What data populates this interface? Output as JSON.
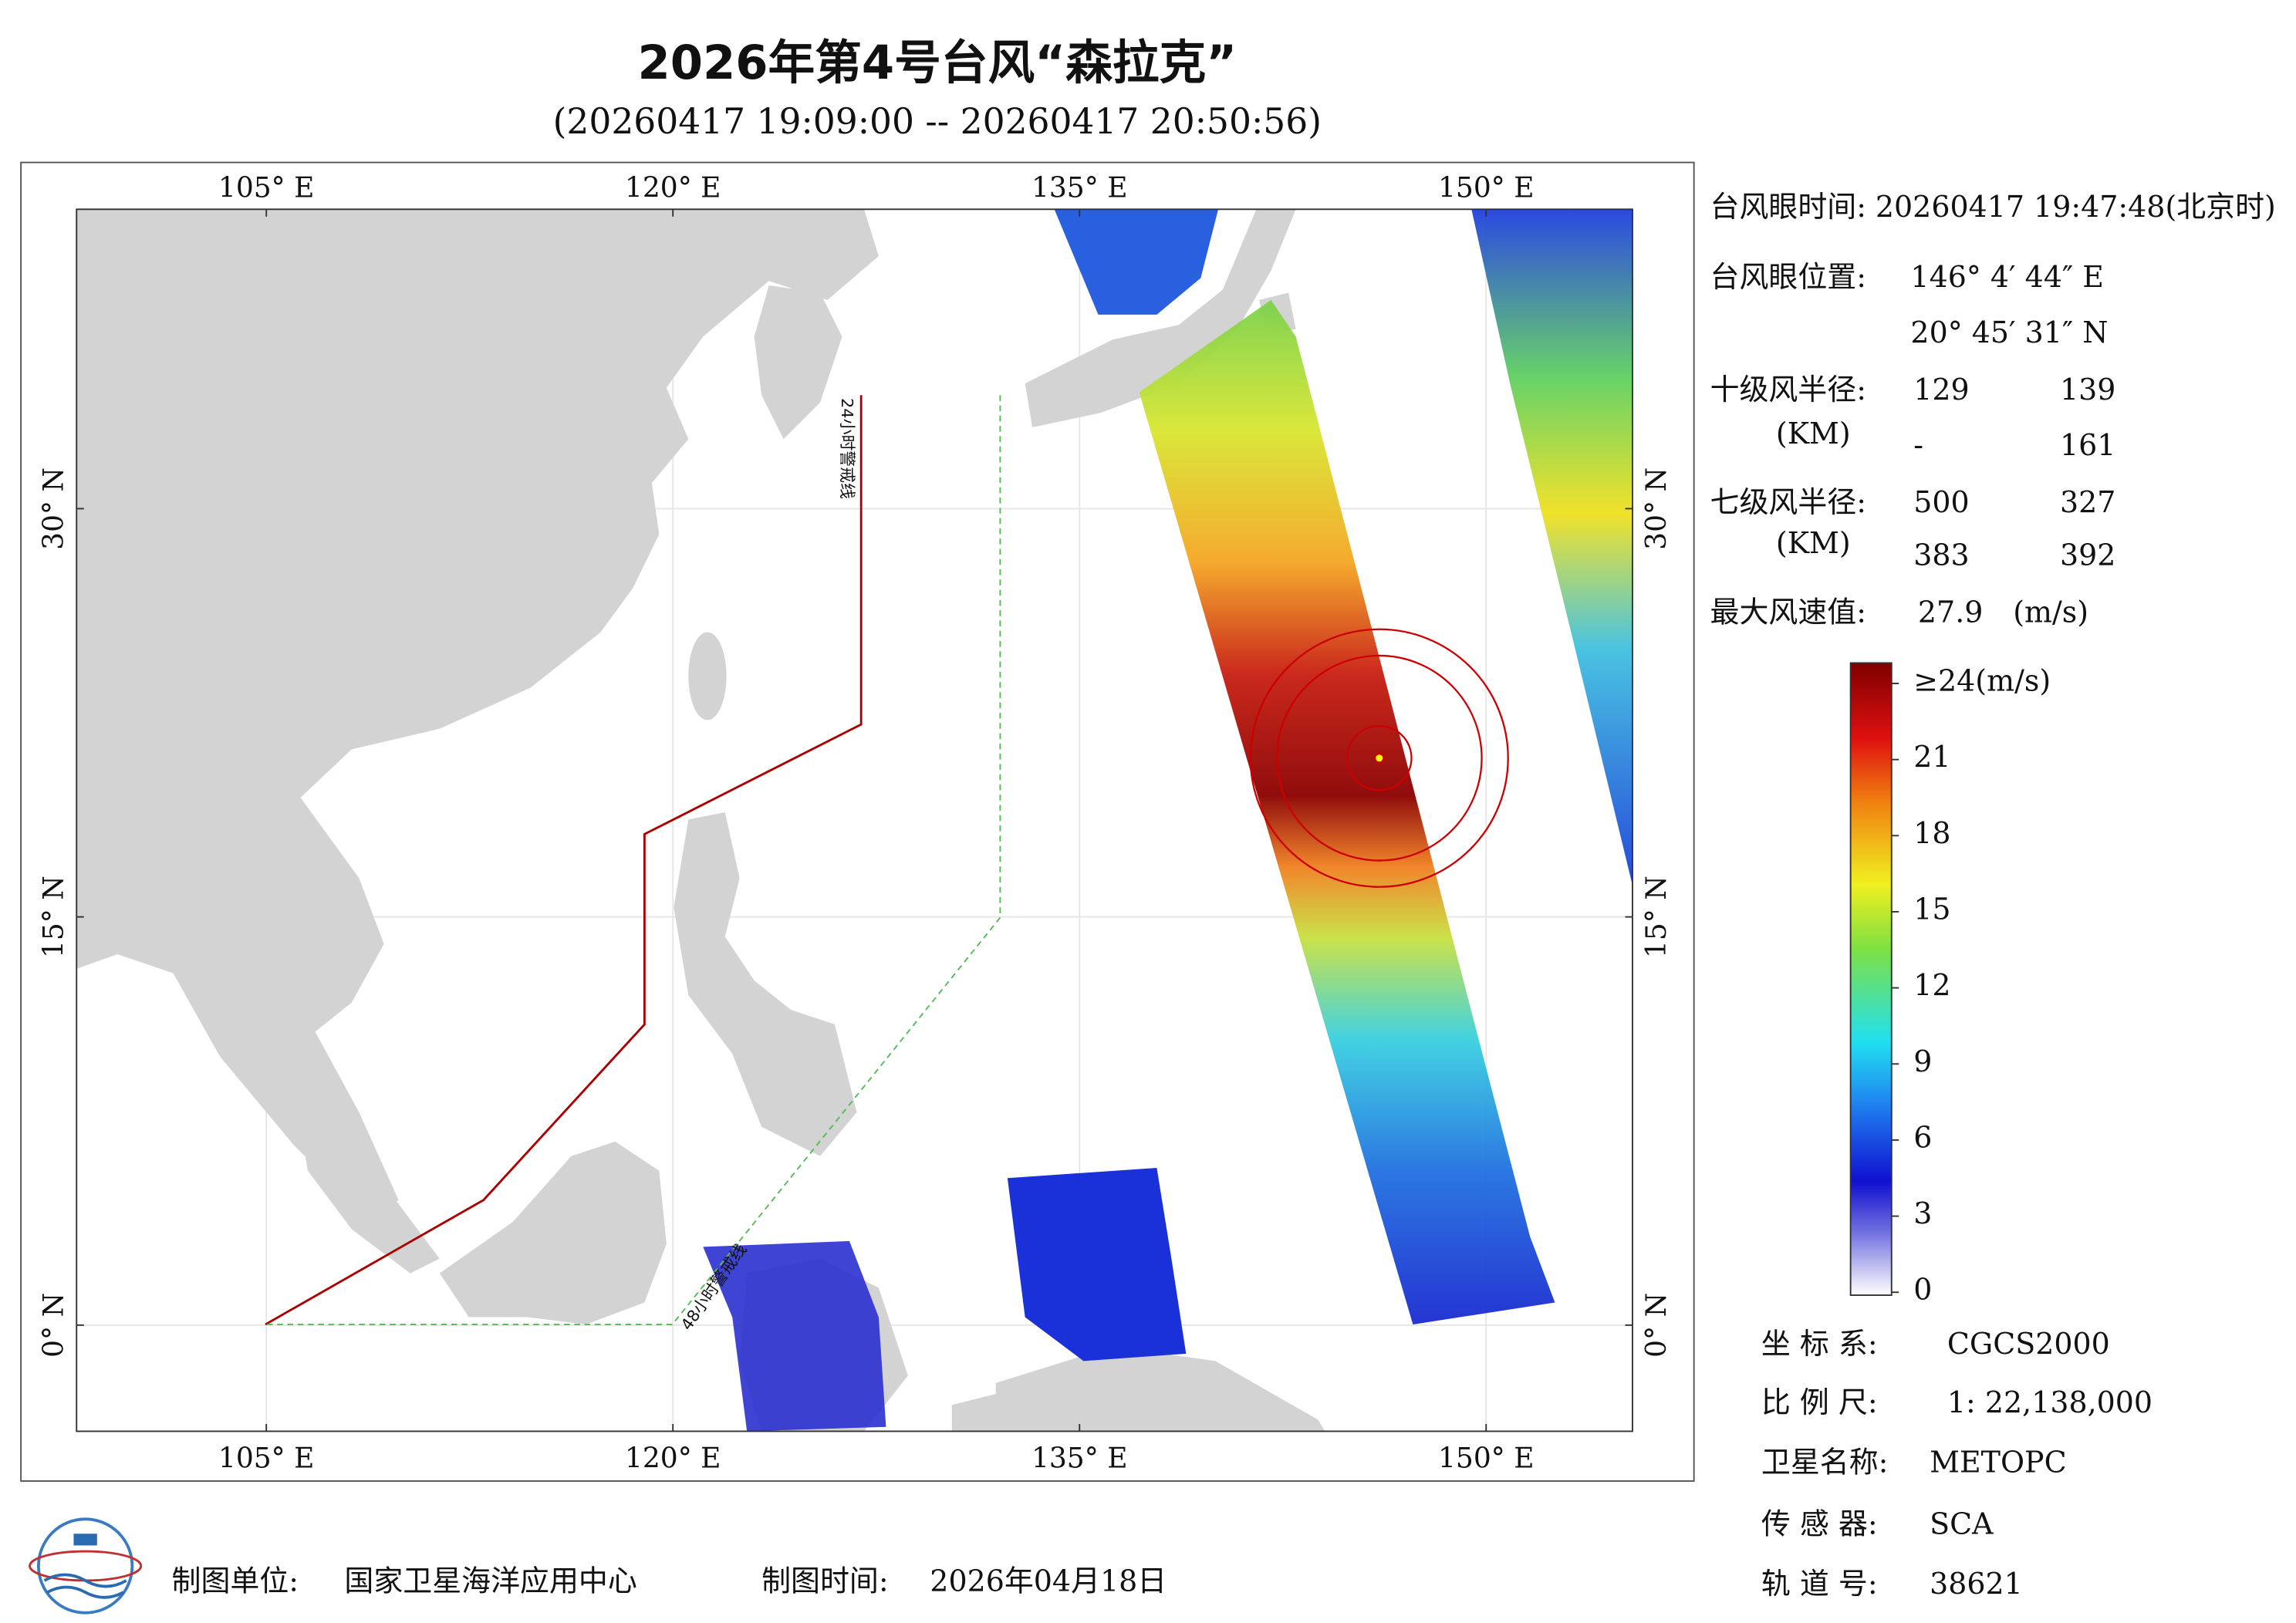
{
  "header": {
    "title": "2026年第4号台风“森拉克”",
    "subtitle": "(20260417 19:09:00 -- 20260417 20:50:56)"
  },
  "map": {
    "xlim": [
      98,
      155.4
    ],
    "ylim": [
      -3.9,
      41
    ],
    "xticks": [
      {
        "value": 105,
        "label": "105° E"
      },
      {
        "value": 120,
        "label": "120° E"
      },
      {
        "value": 135,
        "label": "135° E"
      },
      {
        "value": 150,
        "label": "150° E"
      }
    ],
    "yticks": [
      {
        "value": 0,
        "label": "0° N"
      },
      {
        "value": 15,
        "label": "15° N"
      },
      {
        "value": 30,
        "label": "30° N"
      }
    ],
    "annotations": [
      "24小时警戒线",
      "48小时警戒线"
    ]
  },
  "info": {
    "eye_time_label": "台风眼时间:",
    "eye_time": "20260417 19:47:48(北京时)",
    "eye_pos_label": "台风眼位置:",
    "eye_lon": "146° 4′ 44″ E",
    "eye_lat": "20° 45′ 31″ N",
    "r10_label": "十级风半径:",
    "r7_label": "七级风半径:",
    "km": "(KM)",
    "r10": [
      "129",
      "139",
      "-",
      "161"
    ],
    "r7": [
      "500",
      "327",
      "383",
      "392"
    ],
    "max_label": "最大风速值:",
    "max_value": "27.9",
    "max_unit": "(m/s)"
  },
  "colorbar": {
    "lim": [
      0,
      24
    ],
    "ticks": [
      0,
      3,
      6,
      9,
      12,
      15,
      18,
      21,
      {
        "value": 24,
        "label": "≥24(m/s)"
      }
    ]
  },
  "footer": {
    "crs_label": "坐 标 系:",
    "crs": "CGCS2000",
    "scale_label": "比 例 尺:",
    "scale": "1: 22,138,000",
    "sat_label": "卫星名称:",
    "sat": "METOPC",
    "sensor_label": "传 感 器:",
    "sensor": "SCA",
    "orbit_label": "轨 道 号:",
    "orbit": "38621",
    "unit_label": "制图单位:",
    "unit": "国家卫星海洋应用中心",
    "time_label": "制图时间:",
    "time": "2026年04月18日"
  }
}
